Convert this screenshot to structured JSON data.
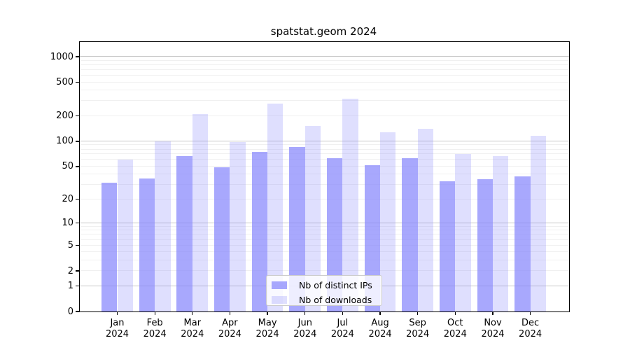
{
  "title": "spatstat.geom 2024",
  "chart_data": {
    "type": "bar",
    "title": "spatstat.geom 2024",
    "categories": [
      "Jan",
      "Feb",
      "Mar",
      "Apr",
      "May",
      "Jun",
      "Jul",
      "Aug",
      "Sep",
      "Oct",
      "Nov",
      "Dec"
    ],
    "x_year_suffix": "2024",
    "series": [
      {
        "name": "Nb of distinct IPs",
        "color_fill": "rgba(135,135,252,0.72)",
        "color_hex": "#a7a7fa",
        "values": [
          32,
          36,
          67,
          49,
          75,
          86,
          63,
          52,
          63,
          33,
          35,
          38
        ]
      },
      {
        "name": "Nb of downloads",
        "color_fill": "rgba(135,135,252,0.27)",
        "color_hex": "#dbdbfa",
        "values": [
          61,
          100,
          209,
          98,
          278,
          152,
          320,
          128,
          141,
          70,
          67,
          116
        ]
      }
    ],
    "yscale": "log1p",
    "y_ticks": [
      0,
      1,
      2,
      5,
      10,
      20,
      50,
      100,
      200,
      500,
      1000
    ],
    "ylim": [
      0,
      1490
    ],
    "xlabel": "",
    "ylabel": "",
    "grid": "horizontal-major-and-minor",
    "grid_major_color": "#c6c6c6",
    "grid_minor_color": "#f0f0f0",
    "legend_position": "bottom-center"
  },
  "legend": {
    "items": [
      {
        "label": "Nb of distinct IPs"
      },
      {
        "label": "Nb of downloads"
      }
    ]
  }
}
